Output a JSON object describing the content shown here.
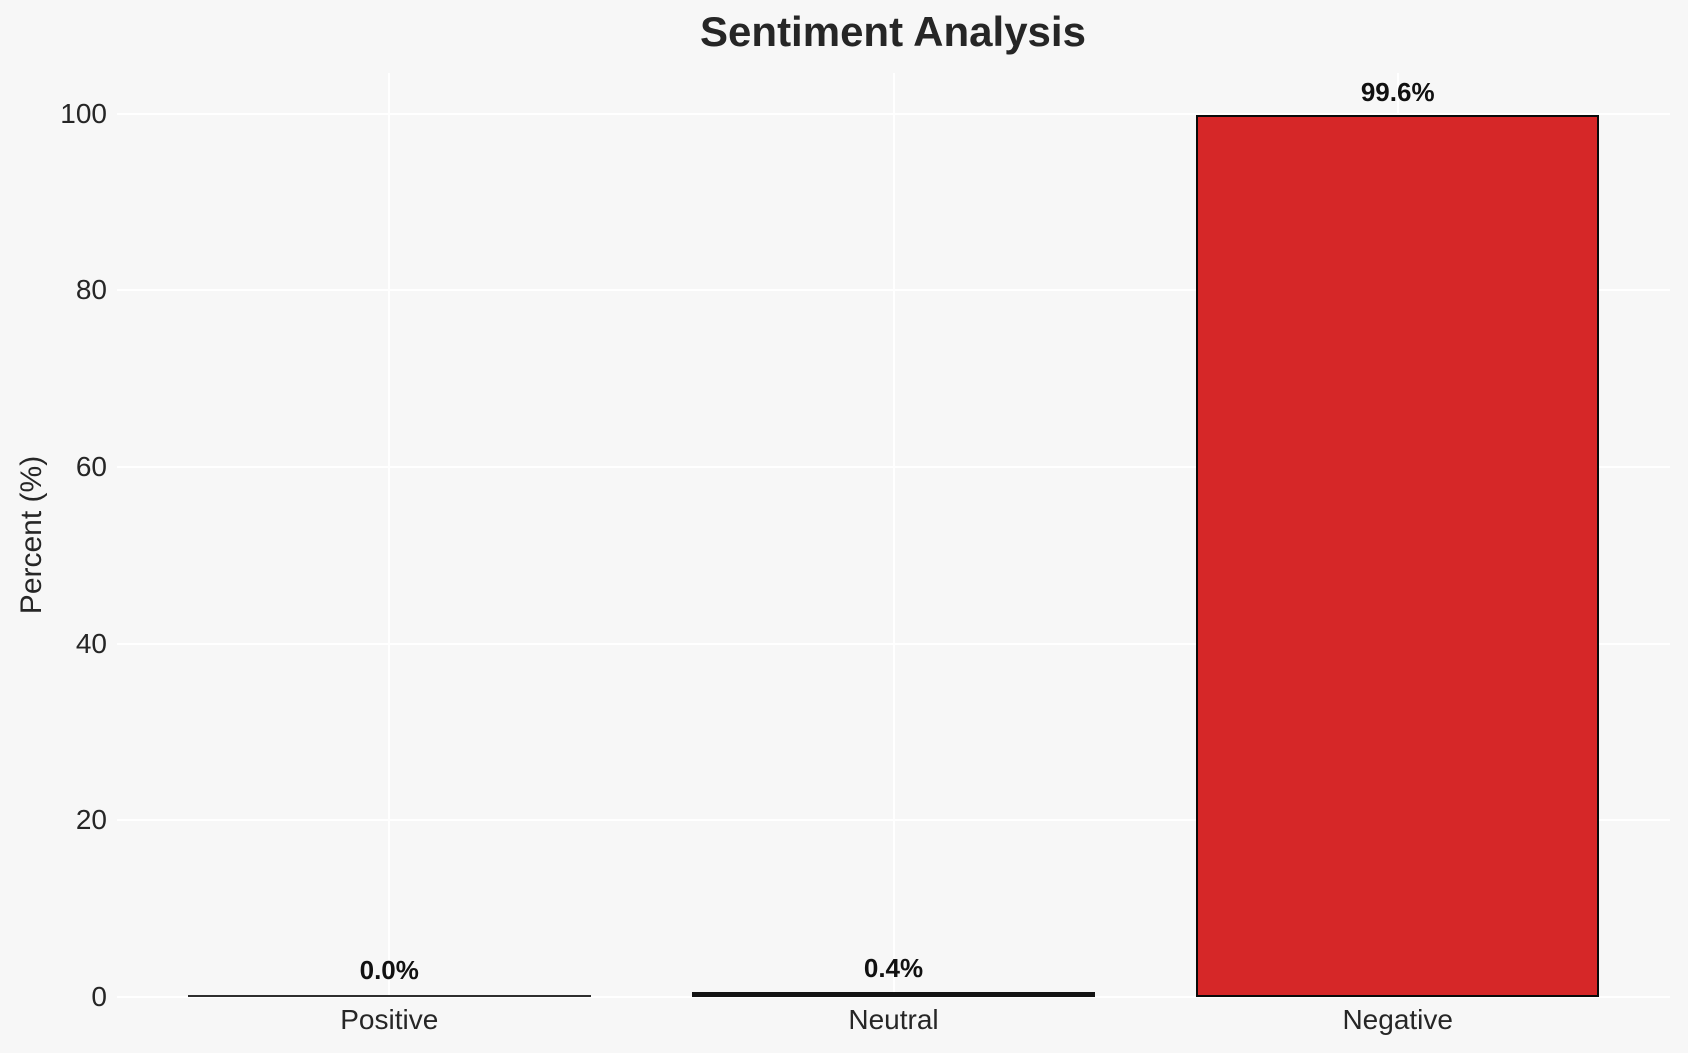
{
  "chart_data": {
    "type": "bar",
    "title": "Sentiment Analysis",
    "categories": [
      "Positive",
      "Neutral",
      "Negative"
    ],
    "values": [
      0.0,
      0.4,
      99.6
    ],
    "value_labels": [
      "0.0%",
      "0.4%",
      "99.6%"
    ],
    "xlabel": "",
    "ylabel": "Percent (%)",
    "yticks": [
      0,
      20,
      40,
      60,
      80,
      100
    ],
    "ylim": [
      0,
      104.6
    ],
    "grid": true,
    "legend": false,
    "colors": {
      "background": "#f7f7f7",
      "gridline": "#ffffff",
      "text": "#262626",
      "value_label_text": "#111111",
      "bar_fills": [
        "#2e2e2e",
        "#141414",
        "#d62728"
      ],
      "bar_edge": "#0a0a0a"
    }
  }
}
